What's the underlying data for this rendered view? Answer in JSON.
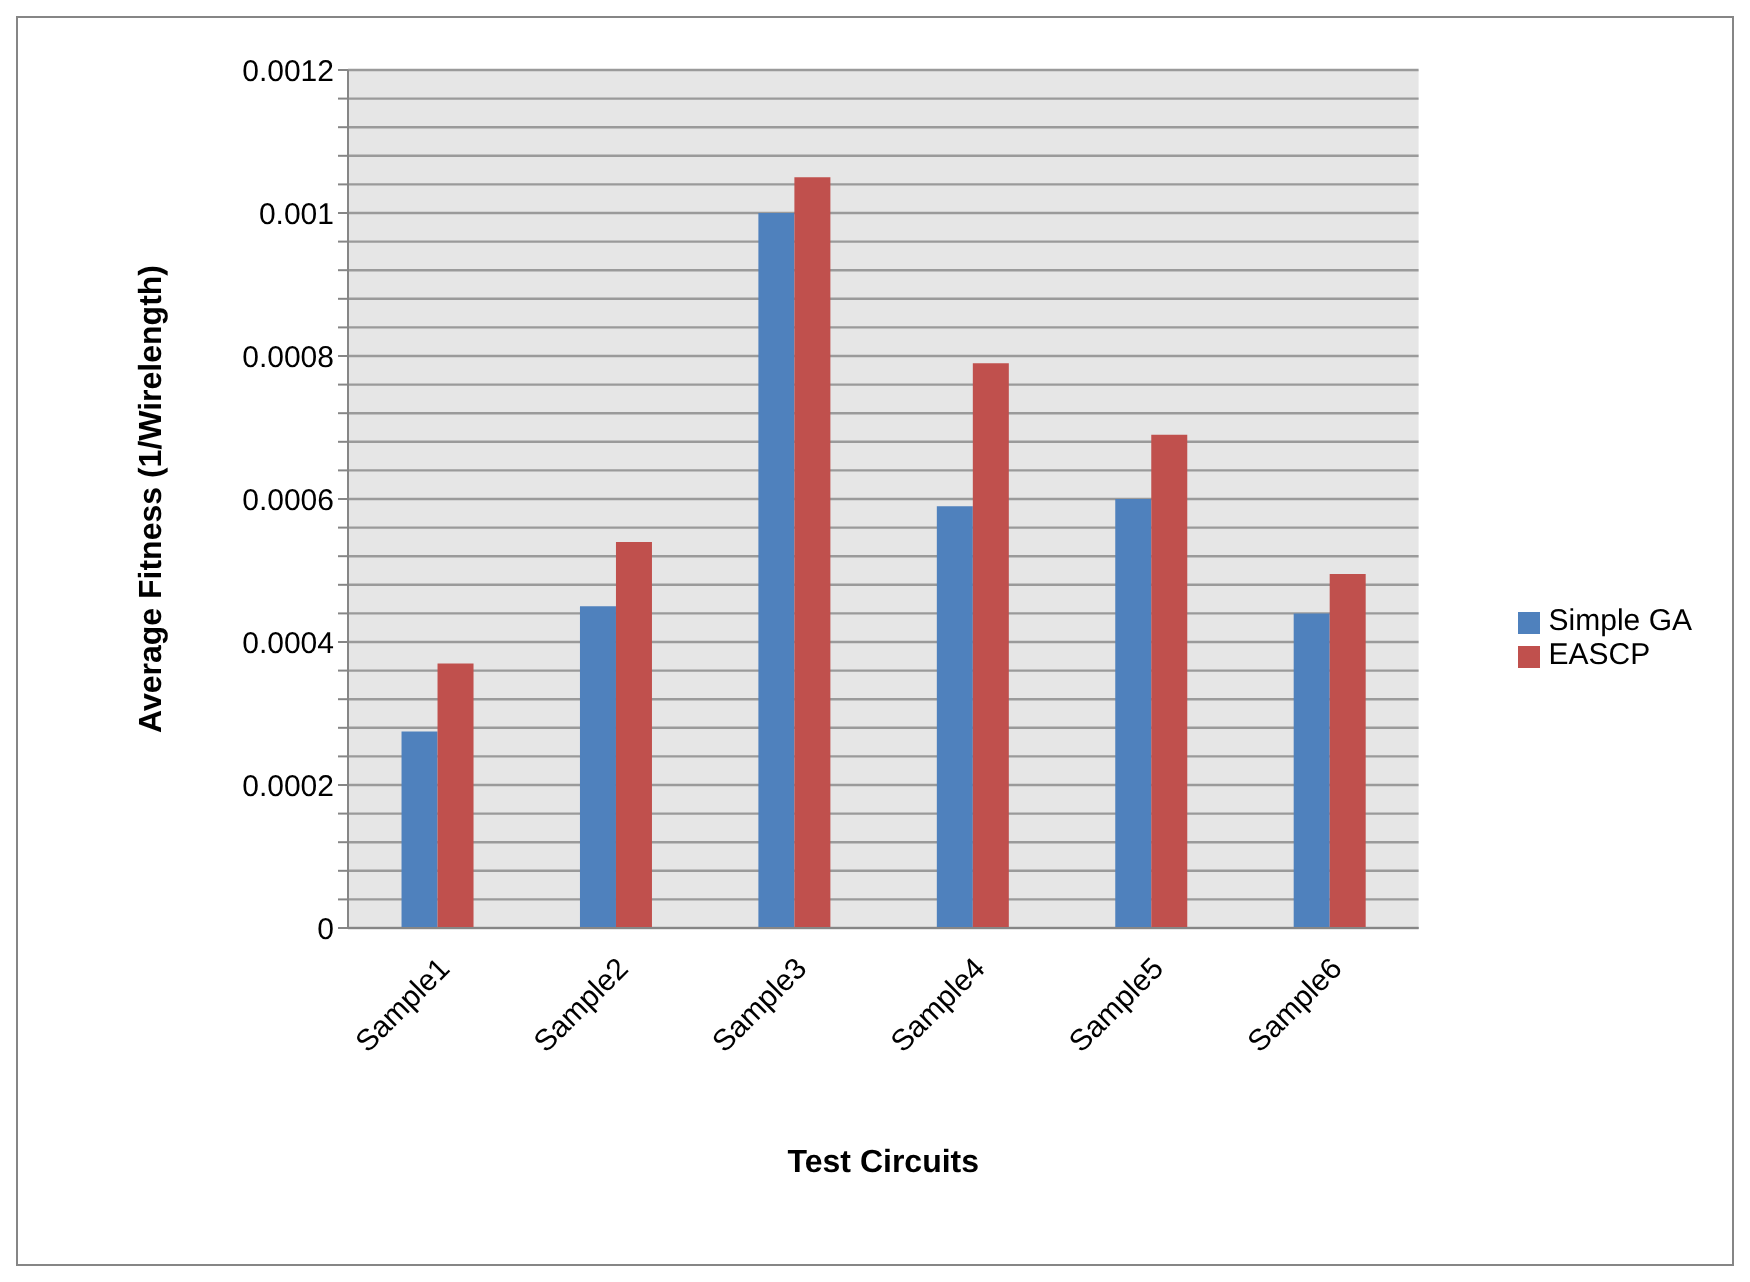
{
  "chart_data": {
    "type": "bar",
    "xlabel": "Test Circuits",
    "ylabel": "Average Fitness (1/Wirelength)",
    "categories": [
      "Sample1",
      "Sample2",
      "Sample3",
      "Sample4",
      "Sample5",
      "Sample6"
    ],
    "series": [
      {
        "name": "Simple GA",
        "color": "#4f81bd",
        "values": [
          0.000275,
          0.00045,
          0.001,
          0.00059,
          0.0006,
          0.00044
        ]
      },
      {
        "name": "EASCP",
        "color": "#c0504d",
        "values": [
          0.00037,
          0.00054,
          0.00105,
          0.00079,
          0.00069,
          0.000495
        ]
      }
    ],
    "ylim": [
      0,
      0.0012
    ],
    "yticks": [
      0,
      {
        "value": 4e-05,
        "label": null
      },
      {
        "value": 8e-05,
        "label": null
      },
      {
        "value": 0.00012,
        "label": null
      },
      {
        "value": 0.00016,
        "label": null
      },
      0.0002,
      {
        "value": 0.00024,
        "label": null
      },
      {
        "value": 0.00028,
        "label": null
      },
      {
        "value": 0.00032,
        "label": null
      },
      {
        "value": 0.00036,
        "label": null
      },
      0.0004,
      {
        "value": 0.00044,
        "label": null
      },
      {
        "value": 0.00048,
        "label": null
      },
      {
        "value": 0.00052,
        "label": null
      },
      {
        "value": 0.00056,
        "label": null
      },
      0.0006,
      {
        "value": 0.00064,
        "label": null
      },
      {
        "value": 0.00068,
        "label": null
      },
      {
        "value": 0.00072,
        "label": null
      },
      {
        "value": 0.00076,
        "label": null
      },
      0.0008,
      {
        "value": 0.00084,
        "label": null
      },
      {
        "value": 0.00088,
        "label": null
      },
      {
        "value": 0.00092,
        "label": null
      },
      {
        "value": 0.00096,
        "label": null
      },
      0.001,
      {
        "value": 0.00104,
        "label": null
      },
      {
        "value": 0.00108,
        "label": null
      },
      {
        "value": 0.00112,
        "label": null
      },
      {
        "value": 0.00116,
        "label": null
      },
      0.0012
    ],
    "grid": "y",
    "legend": "right"
  }
}
